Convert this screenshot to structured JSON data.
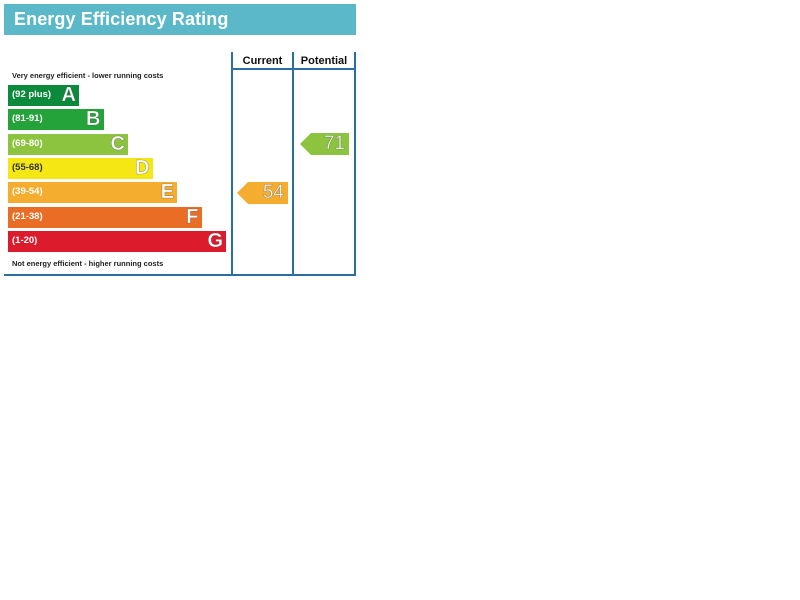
{
  "title": "Energy Efficiency Rating",
  "columns": {
    "current": "Current",
    "potential": "Potential"
  },
  "notes": {
    "top": "Very energy efficient - lower running costs",
    "bottom": "Not energy efficient - higher running costs"
  },
  "chart_data": {
    "type": "bar",
    "categories": [
      "A",
      "B",
      "C",
      "D",
      "E",
      "F",
      "G"
    ],
    "bands": [
      {
        "letter": "A",
        "range": "(92 plus)",
        "color": "#0c8a3c"
      },
      {
        "letter": "B",
        "range": "(81-91)",
        "color": "#23a33a"
      },
      {
        "letter": "C",
        "range": "(69-80)",
        "color": "#8cc43f"
      },
      {
        "letter": "D",
        "range": "(55-68)",
        "color": "#f4e714"
      },
      {
        "letter": "E",
        "range": "(39-54)",
        "color": "#f5ad2f"
      },
      {
        "letter": "F",
        "range": "(21-38)",
        "color": "#ea6d26"
      },
      {
        "letter": "G",
        "range": "(1-20)",
        "color": "#dc1c2d"
      }
    ],
    "current": {
      "value": 54,
      "band": "E",
      "color": "#f5ad2f"
    },
    "potential": {
      "value": 71,
      "band": "C",
      "color": "#8cc43f"
    }
  }
}
